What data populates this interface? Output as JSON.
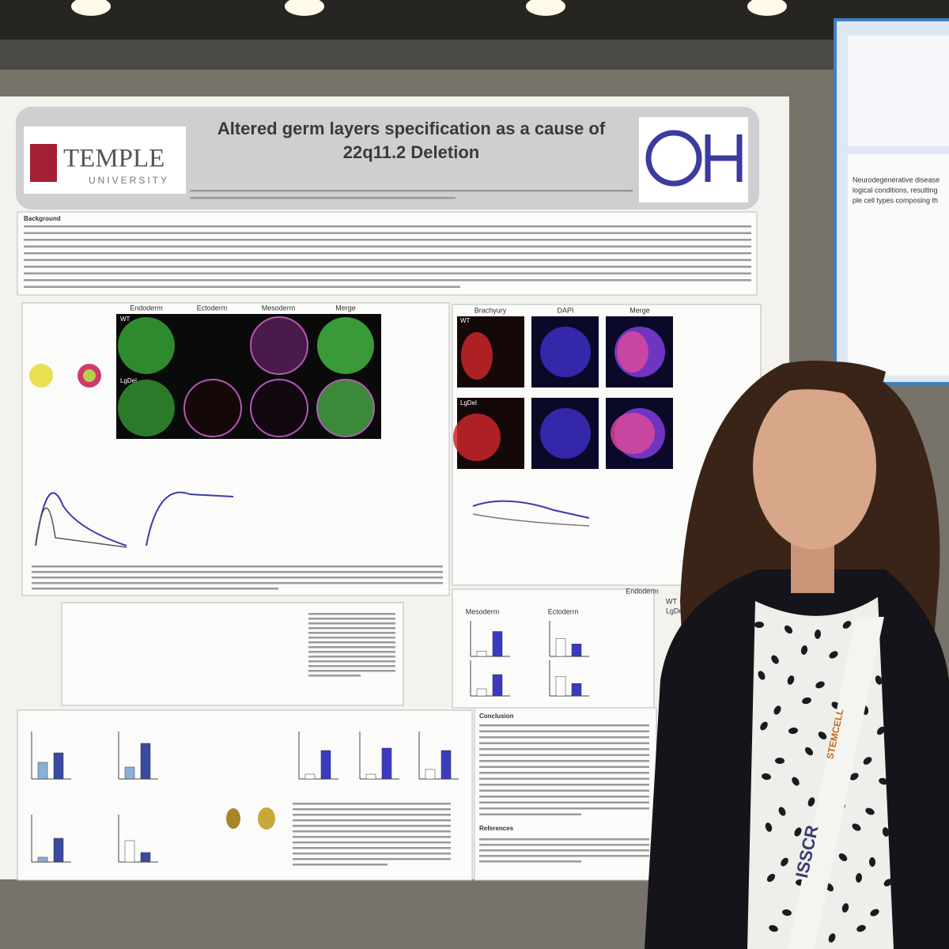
{
  "poster": {
    "title": "Altered germ layers specification as a cause of 22q11.2 Deletion",
    "institution": {
      "name": "TEMPLE",
      "subtitle": "UNIVERSITY"
    },
    "background_heading": "Background",
    "figure1_columns": [
      "Endoderm",
      "Ectoderm",
      "Mesoderm",
      "Merge"
    ],
    "figure1_rows": [
      "WT",
      "LgDel"
    ],
    "figure2_columns": [
      "Brachyury",
      "DAPI",
      "Merge"
    ],
    "figure2_rows": [
      "WT",
      "LgDel"
    ],
    "figure3_headings": [
      "Mesoderm",
      "Ectoderm",
      "Endoderm"
    ],
    "figure3_legend": [
      "WT",
      "LgDel"
    ],
    "conclusion_heading": "Conclusion",
    "references_heading": "References"
  },
  "neighbor_poster": {
    "lines": [
      "Neurodegenerative disease",
      "logical conditions, resulting",
      "ple cell types composing th"
    ]
  },
  "lanyard": [
    "ISSCR",
    "STEMCELL"
  ]
}
